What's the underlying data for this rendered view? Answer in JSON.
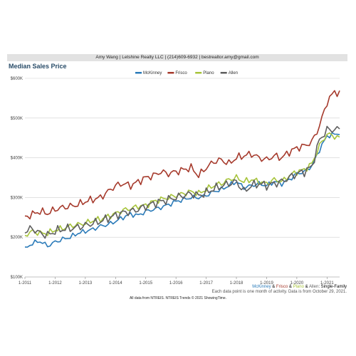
{
  "header": {
    "text": "Amy Wang | Letshine Realty LLC | (214)609-6932 | bestrealtor.amy@gmail.com"
  },
  "subtitle": {
    "mck": "McKinney",
    "amp1": " & ",
    "fri": "Frisco",
    "amp2": " & ",
    "pla": "Plano",
    "amp3": " & ",
    "all": "Allen",
    "rest": ": Single-Family"
  },
  "note": "Each data point is one month of activity. Data is from October 29, 2021.",
  "footer": "All data from NTREIS. NTREIS Trends © 2021 ShowingTime.",
  "colors": {
    "McKinney": "#2b7bb9",
    "Frisco": "#a63a2c",
    "Plano": "#a7c43a",
    "Allen": "#5f5f5f"
  },
  "chart_data": {
    "type": "line",
    "title": "Median Sales Price",
    "xlabel": "",
    "ylabel": "",
    "xlim": [
      "2011-01",
      "2021-10"
    ],
    "ylim": [
      100000,
      600000
    ],
    "yticks": [
      "$100K",
      "$200K",
      "$300K",
      "$400K",
      "$500K",
      "$600K"
    ],
    "xticks": [
      "1-2011",
      "1-2012",
      "1-2013",
      "1-2014",
      "1-2015",
      "1-2016",
      "1-2017",
      "1-2018",
      "1-2019",
      "1-2020",
      "1-2021"
    ],
    "grid": "horizontal",
    "legend": "top-center",
    "series": [
      {
        "name": "McKinney",
        "anchors": [
          [
            0,
            170000
          ],
          [
            3,
            185000
          ],
          [
            6,
            190000
          ],
          [
            9,
            178000
          ],
          [
            12,
            188000
          ],
          [
            15,
            195000
          ],
          [
            18,
            200000
          ],
          [
            21,
            210000
          ],
          [
            24,
            215000
          ],
          [
            27,
            220000
          ],
          [
            30,
            228000
          ],
          [
            33,
            232000
          ],
          [
            36,
            240000
          ],
          [
            39,
            250000
          ],
          [
            42,
            258000
          ],
          [
            45,
            255000
          ],
          [
            48,
            265000
          ],
          [
            51,
            270000
          ],
          [
            54,
            275000
          ],
          [
            57,
            282000
          ],
          [
            60,
            290000
          ],
          [
            63,
            295000
          ],
          [
            66,
            300000
          ],
          [
            69,
            300000
          ],
          [
            72,
            305000
          ],
          [
            75,
            315000
          ],
          [
            78,
            320000
          ],
          [
            81,
            330000
          ],
          [
            84,
            340000
          ],
          [
            87,
            325000
          ],
          [
            90,
            330000
          ],
          [
            93,
            335000
          ],
          [
            96,
            330000
          ],
          [
            99,
            340000
          ],
          [
            102,
            335000
          ],
          [
            105,
            345000
          ],
          [
            108,
            360000
          ],
          [
            111,
            365000
          ],
          [
            114,
            380000
          ],
          [
            117,
            420000
          ],
          [
            120,
            455000
          ],
          [
            125,
            462000
          ]
        ]
      },
      {
        "name": "Frisco",
        "anchors": [
          [
            0,
            250000
          ],
          [
            3,
            258000
          ],
          [
            6,
            265000
          ],
          [
            9,
            260000
          ],
          [
            12,
            270000
          ],
          [
            15,
            275000
          ],
          [
            18,
            278000
          ],
          [
            21,
            282000
          ],
          [
            24,
            290000
          ],
          [
            27,
            295000
          ],
          [
            30,
            300000
          ],
          [
            33,
            315000
          ],
          [
            36,
            330000
          ],
          [
            39,
            335000
          ],
          [
            42,
            330000
          ],
          [
            45,
            340000
          ],
          [
            48,
            350000
          ],
          [
            51,
            355000
          ],
          [
            54,
            365000
          ],
          [
            57,
            360000
          ],
          [
            60,
            365000
          ],
          [
            63,
            370000
          ],
          [
            66,
            375000
          ],
          [
            69,
            355000
          ],
          [
            72,
            375000
          ],
          [
            75,
            390000
          ],
          [
            78,
            395000
          ],
          [
            81,
            385000
          ],
          [
            84,
            400000
          ],
          [
            87,
            405000
          ],
          [
            90,
            410000
          ],
          [
            93,
            400000
          ],
          [
            96,
            395000
          ],
          [
            99,
            405000
          ],
          [
            102,
            400000
          ],
          [
            105,
            415000
          ],
          [
            108,
            425000
          ],
          [
            111,
            430000
          ],
          [
            114,
            440000
          ],
          [
            117,
            480000
          ],
          [
            120,
            540000
          ],
          [
            123,
            568000
          ],
          [
            125,
            560000
          ]
        ]
      },
      {
        "name": "Plano",
        "anchors": [
          [
            0,
            205000
          ],
          [
            3,
            215000
          ],
          [
            6,
            210000
          ],
          [
            9,
            210000
          ],
          [
            12,
            218000
          ],
          [
            15,
            222000
          ],
          [
            18,
            228000
          ],
          [
            21,
            232000
          ],
          [
            24,
            235000
          ],
          [
            27,
            242000
          ],
          [
            30,
            245000
          ],
          [
            33,
            252000
          ],
          [
            36,
            260000
          ],
          [
            39,
            268000
          ],
          [
            42,
            272000
          ],
          [
            45,
            278000
          ],
          [
            48,
            280000
          ],
          [
            51,
            290000
          ],
          [
            54,
            295000
          ],
          [
            57,
            300000
          ],
          [
            60,
            305000
          ],
          [
            63,
            310000
          ],
          [
            66,
            315000
          ],
          [
            69,
            310000
          ],
          [
            72,
            320000
          ],
          [
            75,
            330000
          ],
          [
            78,
            335000
          ],
          [
            81,
            345000
          ],
          [
            84,
            350000
          ],
          [
            87,
            340000
          ],
          [
            90,
            345000
          ],
          [
            93,
            340000
          ],
          [
            96,
            335000
          ],
          [
            99,
            345000
          ],
          [
            102,
            340000
          ],
          [
            105,
            355000
          ],
          [
            108,
            365000
          ],
          [
            111,
            370000
          ],
          [
            114,
            385000
          ],
          [
            117,
            430000
          ],
          [
            120,
            460000
          ],
          [
            125,
            450000
          ]
        ]
      },
      {
        "name": "Allen",
        "anchors": [
          [
            0,
            215000
          ],
          [
            3,
            222000
          ],
          [
            6,
            210000
          ],
          [
            9,
            205000
          ],
          [
            12,
            215000
          ],
          [
            15,
            220000
          ],
          [
            18,
            222000
          ],
          [
            21,
            225000
          ],
          [
            24,
            230000
          ],
          [
            27,
            235000
          ],
          [
            30,
            240000
          ],
          [
            33,
            248000
          ],
          [
            36,
            255000
          ],
          [
            39,
            262000
          ],
          [
            42,
            265000
          ],
          [
            45,
            270000
          ],
          [
            48,
            278000
          ],
          [
            51,
            285000
          ],
          [
            54,
            290000
          ],
          [
            57,
            295000
          ],
          [
            60,
            300000
          ],
          [
            63,
            305000
          ],
          [
            66,
            310000
          ],
          [
            69,
            305000
          ],
          [
            72,
            312000
          ],
          [
            75,
            322000
          ],
          [
            78,
            328000
          ],
          [
            81,
            335000
          ],
          [
            84,
            340000
          ],
          [
            87,
            315000
          ],
          [
            90,
            330000
          ],
          [
            93,
            335000
          ],
          [
            96,
            330000
          ],
          [
            99,
            335000
          ],
          [
            102,
            340000
          ],
          [
            105,
            350000
          ],
          [
            108,
            360000
          ],
          [
            111,
            365000
          ],
          [
            114,
            378000
          ],
          [
            117,
            445000
          ],
          [
            120,
            470000
          ],
          [
            125,
            472000
          ]
        ]
      }
    ]
  }
}
